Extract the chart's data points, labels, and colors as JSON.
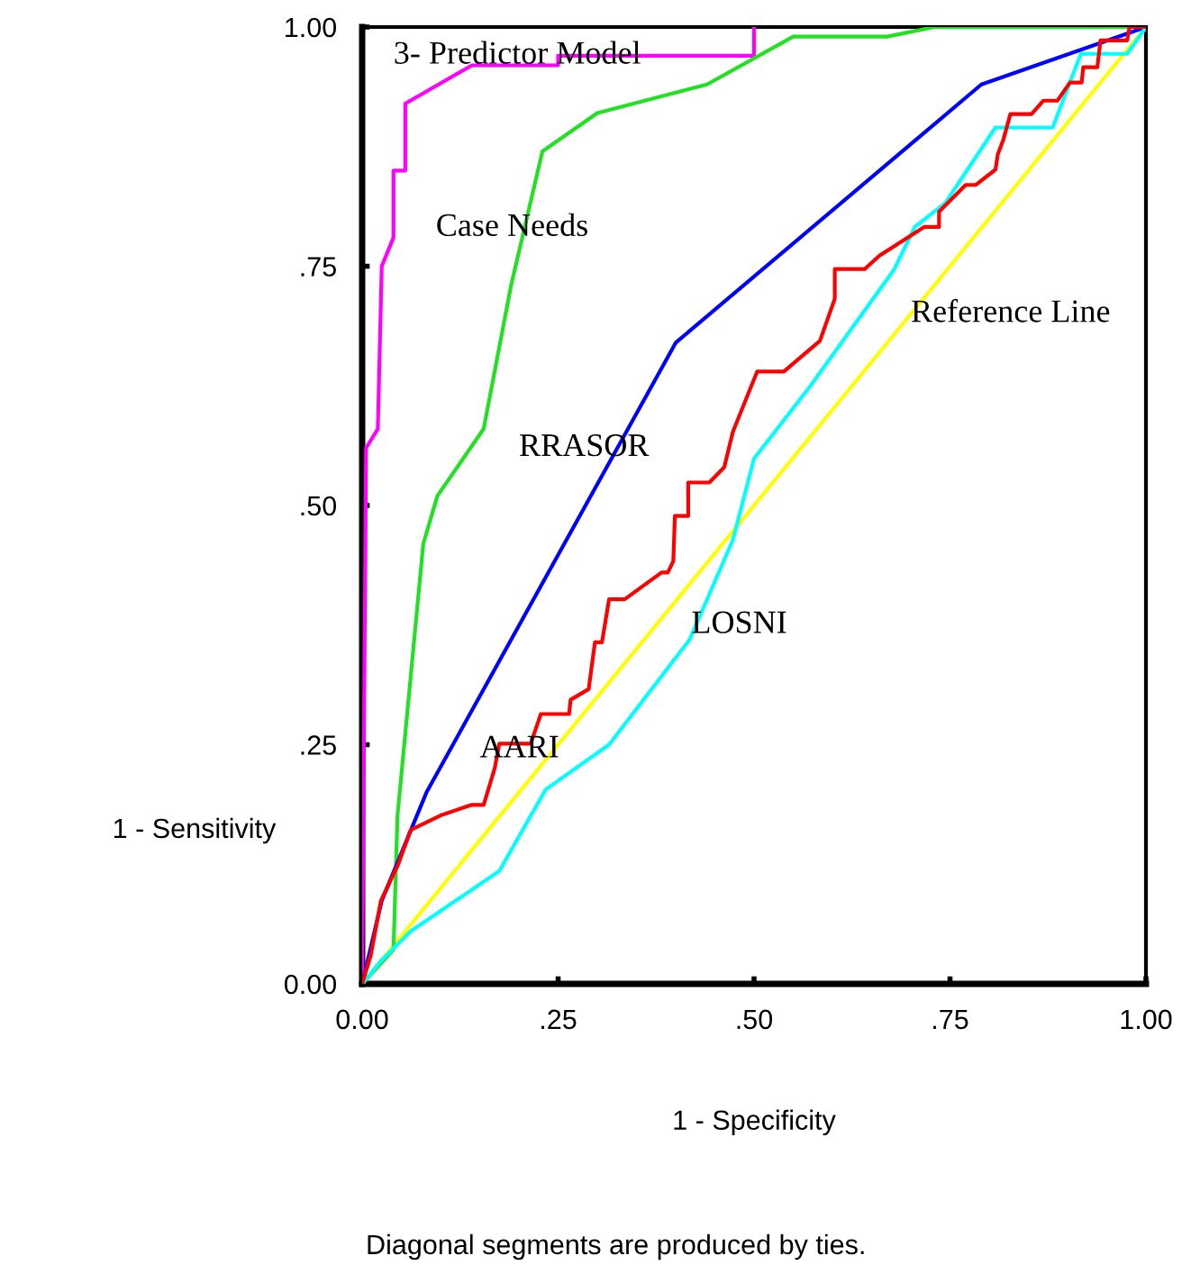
{
  "chart_data": {
    "type": "line",
    "xlabel": "1 - Specificity",
    "ylabel": "1 - Sensitivity",
    "annotations": [
      "Diagonal segments are produced by ties."
    ],
    "xlim": [
      0,
      1
    ],
    "ylim": [
      0,
      1
    ],
    "xticks": [
      {
        "value": 0,
        "label": "0.00"
      },
      {
        "value": 0.25,
        "label": ".25"
      },
      {
        "value": 0.5,
        "label": ".50"
      },
      {
        "value": 0.75,
        "label": ".75"
      },
      {
        "value": 1,
        "label": "1.00"
      }
    ],
    "yticks": [
      {
        "value": 0,
        "label": "0.00"
      },
      {
        "value": 0.25,
        "label": ".25"
      },
      {
        "value": 0.5,
        "label": ".50"
      },
      {
        "value": 0.75,
        "label": ".75"
      },
      {
        "value": 1,
        "label": "1.00"
      }
    ],
    "grid": false,
    "legend": false,
    "marker": "none",
    "line_style": "solid",
    "series": [
      {
        "name": "3- Predictor Model",
        "color": "#ff00ff",
        "x": [
          0,
          0.005,
          0.02,
          0.025,
          0.04,
          0.04,
          0.055,
          0.055,
          0.14,
          0.25,
          0.25,
          0.5,
          0.5
        ],
        "values": [
          0,
          0.56,
          0.58,
          0.75,
          0.78,
          0.85,
          0.85,
          0.92,
          0.96,
          0.96,
          0.97,
          0.97,
          1
        ]
      },
      {
        "name": "Case Needs",
        "color": "#22e022",
        "x": [
          0,
          0.04,
          0.045,
          0.078,
          0.096,
          0.155,
          0.19,
          0.23,
          0.3,
          0.44,
          0.55,
          0.67,
          0.73,
          1
        ],
        "values": [
          0,
          0.036,
          0.175,
          0.46,
          0.51,
          0.58,
          0.73,
          0.87,
          0.91,
          0.94,
          0.99,
          0.99,
          1,
          1
        ]
      },
      {
        "name": "RRASOR",
        "color": "#0000ff",
        "x": [
          0,
          0.025,
          0.082,
          0.4,
          0.79,
          1
        ],
        "values": [
          0,
          0.087,
          0.2,
          0.67,
          0.94,
          1
        ]
      },
      {
        "name": "LOSNI",
        "color": "#00ffff",
        "x": [
          0,
          0.024,
          0.062,
          0.175,
          0.234,
          0.315,
          0.418,
          0.473,
          0.5,
          0.572,
          0.679,
          0.705,
          0.744,
          0.808,
          0.881,
          0.917,
          0.976,
          1
        ],
        "values": [
          0,
          0.024,
          0.055,
          0.118,
          0.203,
          0.25,
          0.36,
          0.464,
          0.549,
          0.625,
          0.747,
          0.791,
          0.816,
          0.895,
          0.895,
          0.972,
          0.972,
          1
        ]
      },
      {
        "name": "AARI",
        "color": "#ff0000",
        "x": [
          0,
          0.011,
          0.024,
          0.046,
          0.062,
          0.1,
          0.139,
          0.155,
          0.169,
          0.175,
          0.215,
          0.228,
          0.264,
          0.266,
          0.289,
          0.297,
          0.306,
          0.315,
          0.335,
          0.382,
          0.39,
          0.397,
          0.399,
          0.416,
          0.416,
          0.443,
          0.462,
          0.473,
          0.504,
          0.538,
          0.584,
          0.603,
          0.603,
          0.641,
          0.66,
          0.717,
          0.736,
          0.736,
          0.77,
          0.783,
          0.808,
          0.811,
          0.818,
          0.827,
          0.854,
          0.869,
          0.887,
          0.903,
          0.918,
          0.92,
          0.938,
          0.942,
          0.976,
          0.979,
          1
        ],
        "values": [
          0,
          0.03,
          0.087,
          0.125,
          0.161,
          0.176,
          0.187,
          0.187,
          0.225,
          0.251,
          0.251,
          0.282,
          0.282,
          0.297,
          0.308,
          0.357,
          0.357,
          0.402,
          0.402,
          0.43,
          0.43,
          0.442,
          0.489,
          0.489,
          0.524,
          0.524,
          0.54,
          0.577,
          0.64,
          0.64,
          0.672,
          0.716,
          0.747,
          0.747,
          0.761,
          0.791,
          0.791,
          0.807,
          0.835,
          0.835,
          0.851,
          0.867,
          0.882,
          0.909,
          0.909,
          0.923,
          0.923,
          0.942,
          0.942,
          0.958,
          0.958,
          0.986,
          0.986,
          1,
          1
        ]
      },
      {
        "name": "Reference Line",
        "color": "#ffff00",
        "x": [
          0,
          1
        ],
        "values": [
          0,
          1
        ]
      }
    ]
  }
}
